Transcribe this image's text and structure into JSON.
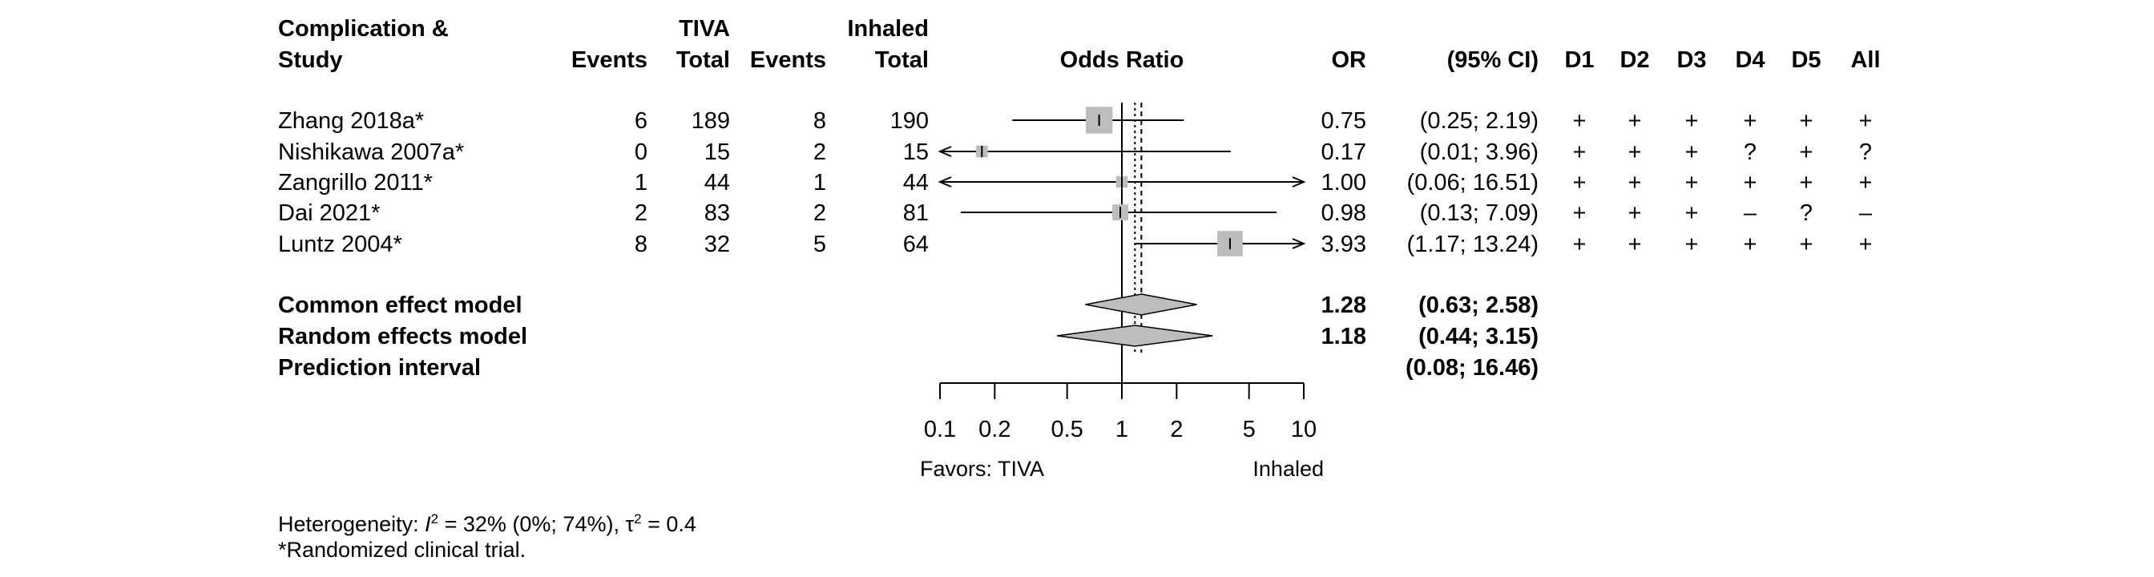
{
  "chart_data": {
    "type": "forest",
    "column_headers": {
      "study": [
        "Complication &",
        "Study"
      ],
      "tiva": "TIVA",
      "inhaled": "Inhaled",
      "events": "Events",
      "total": "Total",
      "or_plot": "Odds Ratio",
      "or": "OR",
      "ci": "(95% CI)",
      "d1": "D1",
      "d2": "D2",
      "d3": "D3",
      "d4": "D4",
      "d5": "D5",
      "all": "All"
    },
    "studies": [
      {
        "name": "Zhang 2018a*",
        "tiva_events": "6",
        "tiva_total": "189",
        "inh_events": "8",
        "inh_total": "190",
        "or": 0.75,
        "lo": 0.25,
        "hi": 2.19,
        "or_text": "0.75",
        "ci_text": "(0.25;  2.19)",
        "weight": 0.31,
        "risk": [
          "+",
          "+",
          "+",
          "+",
          "+",
          "+"
        ]
      },
      {
        "name": "Nishikawa 2007a*",
        "tiva_events": "0",
        "tiva_total": "15",
        "inh_events": "2",
        "inh_total": "15",
        "or": 0.17,
        "lo": 0.01,
        "hi": 3.96,
        "or_text": "0.17",
        "ci_text": "(0.01;  3.96)",
        "weight": 0.06,
        "risk": [
          "+",
          "+",
          "+",
          "?",
          "+",
          "?"
        ]
      },
      {
        "name": "Zangrillo 2011*",
        "tiva_events": "1",
        "tiva_total": "44",
        "inh_events": "1",
        "inh_total": "44",
        "or": 1.0,
        "lo": 0.06,
        "hi": 16.51,
        "or_text": "1.00",
        "ci_text": "(0.06; 16.51)",
        "weight": 0.06,
        "risk": [
          "+",
          "+",
          "+",
          "+",
          "+",
          "+"
        ]
      },
      {
        "name": "Dai 2021*",
        "tiva_events": "2",
        "tiva_total": "83",
        "inh_events": "2",
        "inh_total": "81",
        "or": 0.98,
        "lo": 0.13,
        "hi": 7.09,
        "or_text": "0.98",
        "ci_text": "(0.13;  7.09)",
        "weight": 0.11,
        "risk": [
          "+",
          "+",
          "+",
          "–",
          "?",
          "–"
        ]
      },
      {
        "name": "Luntz 2004*",
        "tiva_events": "8",
        "tiva_total": "32",
        "inh_events": "5",
        "inh_total": "64",
        "or": 3.93,
        "lo": 1.17,
        "hi": 13.24,
        "or_text": "3.93",
        "ci_text": "(1.17; 13.24)",
        "weight": 0.28,
        "risk": [
          "+",
          "+",
          "+",
          "+",
          "+",
          "+"
        ]
      }
    ],
    "summary": [
      {
        "name": "Common effect model",
        "or": 1.28,
        "lo": 0.63,
        "hi": 2.58,
        "or_text": "1.28",
        "ci_text": "(0.63;  2.58)"
      },
      {
        "name": "Random effects model",
        "or": 1.18,
        "lo": 0.44,
        "hi": 3.15,
        "or_text": "1.18",
        "ci_text": "(0.44;  3.15)"
      }
    ],
    "prediction": {
      "name": "Prediction interval",
      "lo": 0.08,
      "hi": 16.46,
      "ci_text": "(0.08; 16.46)"
    },
    "x_axis": {
      "scale": "log",
      "range": [
        0.1,
        10
      ],
      "ticks": [
        0.1,
        0.2,
        0.5,
        1,
        2,
        5,
        10
      ],
      "tick_labels": [
        "0.1",
        "0.2",
        "0.5",
        "1",
        "2",
        "5",
        "10"
      ],
      "label_left": "Favors: TIVA",
      "label_right": "Inhaled"
    },
    "colors": {
      "box": "#bdbdbd",
      "diamond": "#bdbdbd",
      "line": "#000000"
    }
  },
  "footnotes": {
    "heterogeneity_prefix": "Heterogeneity: ",
    "i2_symbol": "I",
    "i2_sup": "2",
    "i2_value": " = 32% (0%; 74%), ",
    "tau_symbol": "τ",
    "tau_sup": "2",
    "tau_value": " = 0.4",
    "rct_note": "*Randomized clinical trial."
  }
}
